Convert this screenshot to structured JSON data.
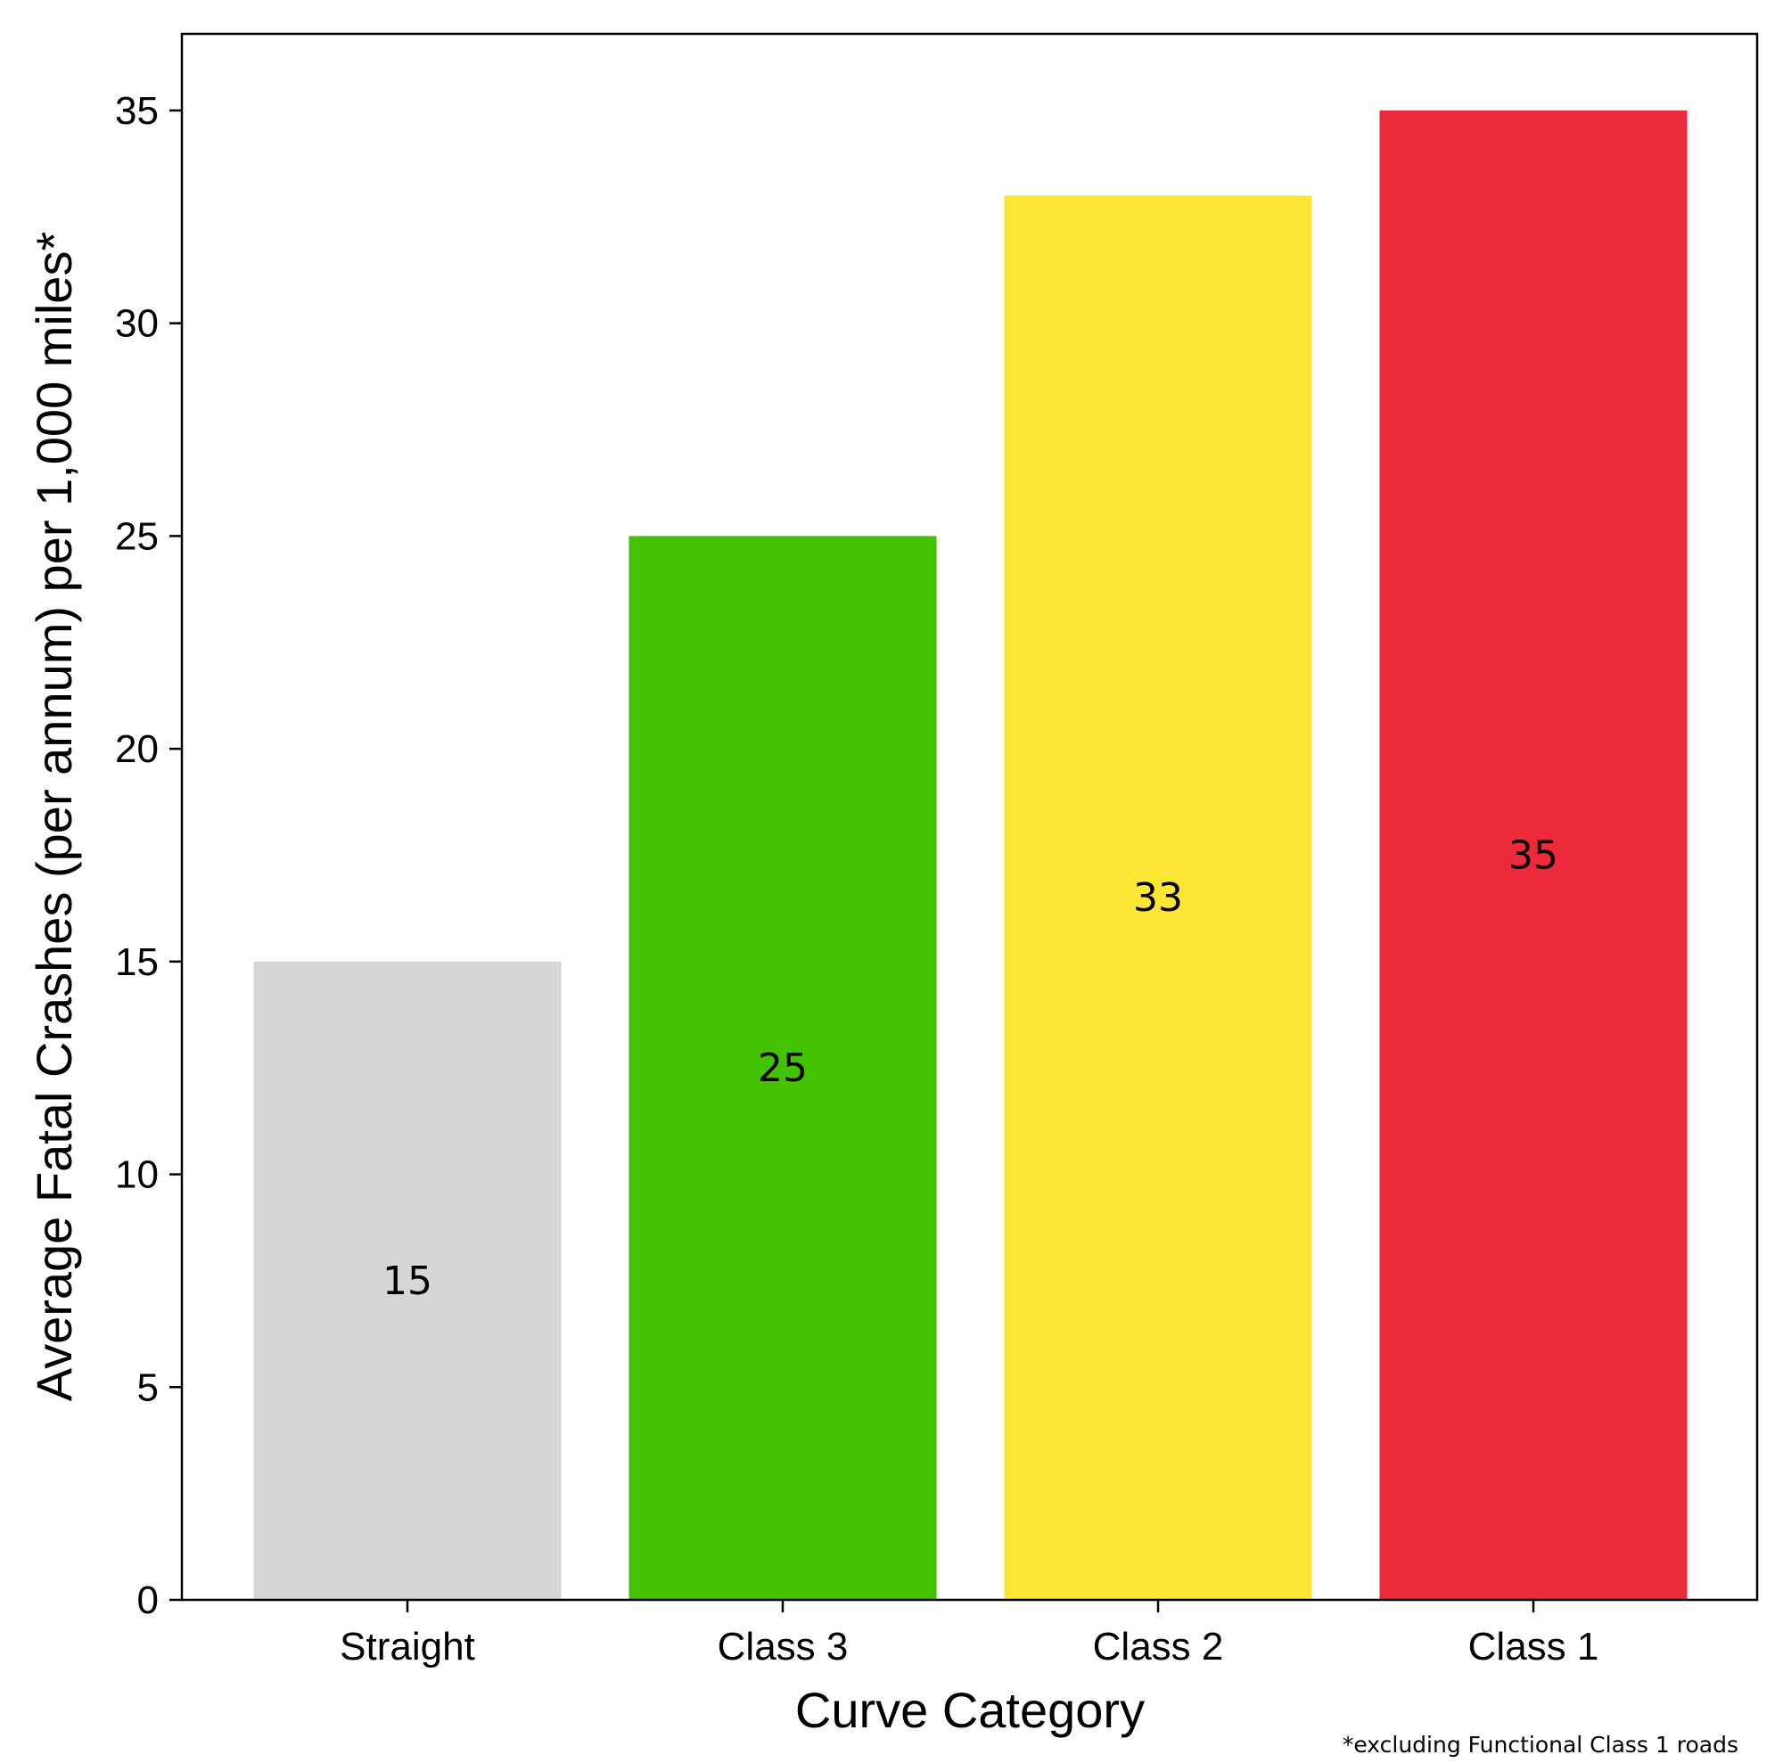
{
  "chart_data": {
    "type": "bar",
    "title": "",
    "xlabel": "Curve Category",
    "ylabel": "Average Fatal Crashes (per annum) per 1,000 miles*",
    "categories": [
      "Straight",
      "Class 3",
      "Class 2",
      "Class 1"
    ],
    "values": [
      15,
      25,
      33,
      35
    ],
    "data_labels": [
      "15",
      "25",
      "33",
      "35"
    ],
    "colors": [
      "#d6d6d6",
      "#43c200",
      "#fde635",
      "#ed2a3b"
    ],
    "ylim": [
      0,
      36.8
    ],
    "yticks": [
      0,
      5,
      10,
      15,
      20,
      25,
      30,
      35
    ],
    "ytick_labels": [
      "0",
      "5",
      "10",
      "15",
      "20",
      "25",
      "30",
      "35"
    ],
    "grid": false,
    "legend": "none",
    "label_position": "middle",
    "footnote": "*excluding Functional Class 1 roads"
  }
}
